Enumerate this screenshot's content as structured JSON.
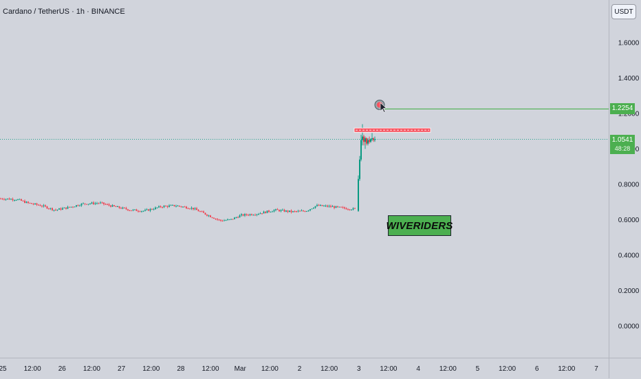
{
  "header": {
    "symbol_title": "Cardano / TetherUS · 1h · BINANCE"
  },
  "currency_button": {
    "label": "USDT"
  },
  "watermark": {
    "text": "WIVERIDERS"
  },
  "colors": {
    "up": "#089981",
    "down": "#f23645",
    "target": "#4caf50",
    "resistance": "#f7525f",
    "background": "#d1d4dc"
  },
  "icons": {
    "target": "target-circle-icon",
    "cursor": "arrow-cursor-icon"
  },
  "current_price": {
    "value": "1.0541",
    "countdown": "48:28"
  },
  "target_price": {
    "value": "1.2254"
  },
  "chart_data": {
    "type": "candlestick",
    "title": "Cardano / TetherUS · 1h · BINANCE",
    "ylim": [
      -0.2,
      1.78
    ],
    "y_ticks": [
      0.0,
      0.2,
      0.4,
      0.6,
      0.8,
      1.0,
      1.2,
      1.4,
      1.6
    ],
    "y_tick_labels": [
      "0.0000",
      "0.2000",
      "0.4000",
      "0.6000",
      "0.8000",
      "1.0000",
      "1.2000",
      "1.4000",
      "1.6000"
    ],
    "x_ticks": [
      "25",
      "12:00",
      "26",
      "12:00",
      "27",
      "12:00",
      "28",
      "12:00",
      "Mar",
      "12:00",
      "2",
      "12:00",
      "3",
      "12:00",
      "4",
      "12:00",
      "5",
      "12:00",
      "6",
      "12:00",
      "7"
    ],
    "price_path": [
      [
        0,
        0.72
      ],
      [
        25,
        0.715
      ],
      [
        40,
        0.695
      ],
      [
        60,
        0.68
      ],
      [
        80,
        0.655
      ],
      [
        100,
        0.67
      ],
      [
        120,
        0.69
      ],
      [
        145,
        0.695
      ],
      [
        165,
        0.675
      ],
      [
        190,
        0.655
      ],
      [
        210,
        0.65
      ],
      [
        235,
        0.675
      ],
      [
        255,
        0.68
      ],
      [
        280,
        0.665
      ],
      [
        300,
        0.63
      ],
      [
        320,
        0.595
      ],
      [
        335,
        0.6
      ],
      [
        350,
        0.625
      ],
      [
        375,
        0.635
      ],
      [
        400,
        0.655
      ],
      [
        425,
        0.645
      ],
      [
        445,
        0.65
      ],
      [
        460,
        0.68
      ],
      [
        480,
        0.675
      ],
      [
        500,
        0.665
      ],
      [
        517,
        0.66
      ]
    ],
    "spike": [
      {
        "x": 521,
        "o": 0.65,
        "h": 0.85,
        "l": 0.645,
        "c": 0.83
      },
      {
        "x": 523,
        "o": 0.83,
        "h": 0.96,
        "l": 0.82,
        "c": 0.94
      },
      {
        "x": 525,
        "o": 0.94,
        "h": 1.08,
        "l": 0.93,
        "c": 1.05
      },
      {
        "x": 527,
        "o": 1.05,
        "h": 1.14,
        "l": 1.02,
        "c": 1.07
      },
      {
        "x": 529,
        "o": 1.07,
        "h": 1.08,
        "l": 1.02,
        "c": 1.04
      },
      {
        "x": 531,
        "o": 1.04,
        "h": 1.07,
        "l": 1.0,
        "c": 1.06
      },
      {
        "x": 533,
        "o": 1.06,
        "h": 1.065,
        "l": 1.02,
        "c": 1.03
      },
      {
        "x": 535,
        "o": 1.03,
        "h": 1.06,
        "l": 1.02,
        "c": 1.05
      },
      {
        "x": 537,
        "o": 1.05,
        "h": 1.07,
        "l": 1.03,
        "c": 1.04
      },
      {
        "x": 539,
        "o": 1.04,
        "h": 1.06,
        "l": 1.035,
        "c": 1.055
      },
      {
        "x": 541,
        "o": 1.055,
        "h": 1.09,
        "l": 1.045,
        "c": 1.06
      },
      {
        "x": 543,
        "o": 1.06,
        "h": 1.065,
        "l": 1.04,
        "c": 1.05
      },
      {
        "x": 545,
        "o": 1.05,
        "h": 1.07,
        "l": 1.04,
        "c": 1.0541
      }
    ],
    "resistance_level": 1.106,
    "target_level": 1.2254,
    "current_level": 1.0541
  }
}
